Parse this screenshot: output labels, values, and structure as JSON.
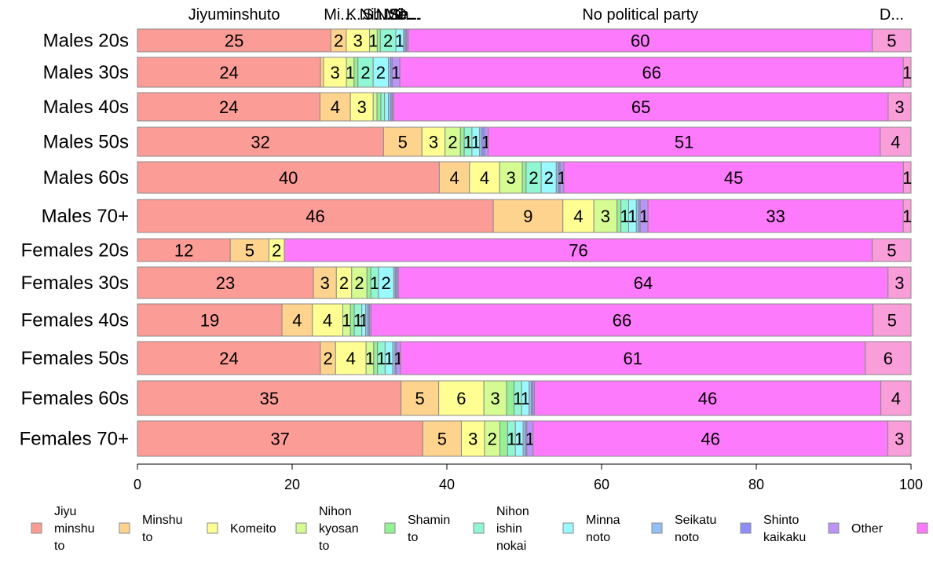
{
  "chart_data": {
    "type": "bar",
    "orientation": "horizontal",
    "stacked": true,
    "xlim": [
      0,
      100
    ],
    "x_ticks": [
      0,
      20,
      40,
      60,
      80,
      100
    ],
    "categories": [
      "Males 20s",
      "Males 30s",
      "Males 40s",
      "Males 50s",
      "Males 60s",
      "Males 70+",
      "Females 20s",
      "Females 30s",
      "Females 40s",
      "Females 50s",
      "Females 60s",
      "Females 70+"
    ],
    "series": [
      {
        "name": "Jiyu minshu to",
        "color": "#FC9C96",
        "values": [
          25,
          24,
          24,
          32,
          40,
          46,
          12,
          23,
          19,
          24,
          35,
          37
        ]
      },
      {
        "name": "Minshu to",
        "color": "#FDD38E",
        "values": [
          2,
          0.4,
          4,
          5,
          4,
          9,
          5,
          3,
          4,
          2,
          5,
          5
        ]
      },
      {
        "name": "Komeito",
        "color": "#FEFE93",
        "values": [
          3,
          3,
          3,
          3,
          4,
          4,
          2,
          2,
          4,
          4,
          6,
          3
        ]
      },
      {
        "name": "Nihon kyosan to",
        "color": "#D5FB93",
        "values": [
          1,
          1,
          0.5,
          2,
          3,
          3,
          0,
          2,
          1,
          1,
          3,
          2
        ]
      },
      {
        "name": "Shamin to",
        "color": "#95F195",
        "values": [
          0.4,
          0.5,
          0.5,
          0.5,
          0.5,
          0.5,
          0,
          0.5,
          0.5,
          0.5,
          1,
          1
        ]
      },
      {
        "name": "Nihon ishin nokai",
        "color": "#90F7D2",
        "values": [
          2,
          2,
          0.5,
          1,
          2,
          1,
          0,
          1,
          1,
          1,
          1,
          1
        ]
      },
      {
        "name": "Minna noto",
        "color": "#9AF9FE",
        "values": [
          1,
          2,
          0.5,
          1,
          2,
          1,
          0,
          2,
          0.5,
          1,
          1,
          1
        ]
      },
      {
        "name": "Seikatu noto",
        "color": "#93BEF6",
        "values": [
          0.2,
          0.3,
          0.3,
          0.3,
          0.3,
          0.3,
          0,
          0.2,
          0.3,
          0.3,
          0.3,
          0.3
        ]
      },
      {
        "name": "Shinto kaikaku",
        "color": "#8E8EFB",
        "values": [
          0.2,
          0.2,
          0.2,
          0.3,
          0.2,
          0.2,
          0,
          0.2,
          0.2,
          0.2,
          0.2,
          0.2
        ]
      },
      {
        "name": "Other",
        "color": "#BB94F7",
        "values": [
          0.2,
          1,
          0.2,
          0.5,
          0.5,
          1,
          0,
          0.2,
          0.2,
          0.5,
          0.2,
          0.8
        ]
      },
      {
        "name": "No political party",
        "color": "#FE7AFC",
        "values": [
          60,
          66,
          65,
          51,
          45,
          33,
          76,
          64,
          66,
          61,
          46,
          46
        ]
      },
      {
        "name": "",
        "color": "#F99ED9",
        "values": [
          5,
          1,
          3,
          4,
          1,
          1,
          5,
          3,
          5,
          6,
          4,
          3
        ]
      }
    ],
    "segment_labels": [
      [
        "25",
        "2",
        "3",
        "1",
        "",
        "2",
        "1",
        "",
        "",
        "",
        "60",
        "5"
      ],
      [
        "24",
        "",
        "3",
        "1",
        "",
        "2",
        "2",
        "",
        "",
        "1",
        "66",
        "1"
      ],
      [
        "24",
        "4",
        "3",
        "",
        "",
        "",
        "",
        "",
        "",
        "",
        "65",
        "3"
      ],
      [
        "32",
        "5",
        "3",
        "2",
        "",
        "1",
        "1",
        "",
        "",
        "1",
        "51",
        "4"
      ],
      [
        "40",
        "4",
        "4",
        "3",
        "",
        "2",
        "2",
        "",
        "",
        "1",
        "45",
        "1"
      ],
      [
        "46",
        "9",
        "4",
        "3",
        "",
        "1",
        "1",
        "",
        "",
        "1",
        "33",
        "1"
      ],
      [
        "12",
        "5",
        "2",
        "",
        "",
        "",
        "",
        "",
        "",
        "",
        "76",
        "5"
      ],
      [
        "23",
        "3",
        "2",
        "2",
        "",
        "1",
        "2",
        "",
        "",
        "",
        "64",
        "3"
      ],
      [
        "19",
        "4",
        "4",
        "1",
        "",
        "1",
        "1",
        "",
        "",
        "",
        "66",
        "5"
      ],
      [
        "24",
        "2",
        "4",
        "1",
        "",
        "1",
        "1",
        "",
        "",
        "1",
        "61",
        "6"
      ],
      [
        "35",
        "5",
        "6",
        "3",
        "",
        "1",
        "1",
        "",
        "",
        "",
        "46",
        "4"
      ],
      [
        "37",
        "5",
        "3",
        "2",
        "",
        "1",
        "1",
        "",
        "",
        "1",
        "46",
        "3"
      ]
    ],
    "top_labels": [
      "Jiyuminshuto",
      "Mi...",
      "K...",
      "Ni...",
      "Sh...",
      "N...",
      "Mi...",
      "Se...",
      "Sh...",
      "O...",
      "No political party",
      "D..."
    ],
    "legend": {
      "placement": "bottom",
      "entries": [
        "Jiyu\nminshu\nto",
        "Minshu\nto",
        "Komeito",
        "Nihon\nkyosan\nto",
        "Shamin\nto",
        "Nihon\nishin\nnokai",
        "Minna\nnoto",
        "Seikatu\nnoto",
        "Shinto\nkaikaku",
        "Other",
        ""
      ]
    },
    "grid": false,
    "title": "",
    "xlabel": "",
    "ylabel": ""
  }
}
